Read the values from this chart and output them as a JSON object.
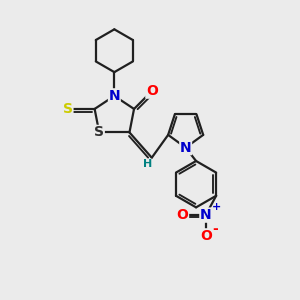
{
  "bg_color": "#ebebeb",
  "atom_colors": {
    "S_yellow": "#cccc00",
    "S_dark": "#303030",
    "N": "#0000cc",
    "O": "#ff0000",
    "C": "#202020",
    "H": "#008080"
  },
  "bond_color": "#202020",
  "bond_width": 1.6,
  "font_size_atom": 10,
  "font_size_H": 8,
  "font_size_charge": 8
}
